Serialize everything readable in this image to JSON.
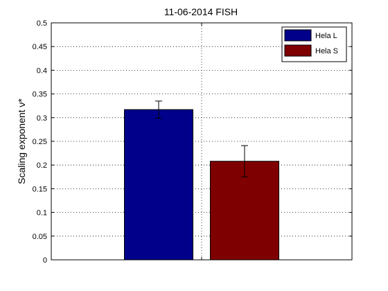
{
  "chart_data": {
    "type": "bar",
    "title": "11-06-2014 FISH",
    "xlabel": "",
    "ylabel": "Scaling exponent ν*",
    "ylim": [
      0,
      0.5
    ],
    "yticks": [
      0,
      0.05,
      0.1,
      0.15,
      0.2,
      0.25,
      0.3,
      0.35,
      0.4,
      0.45,
      0.5
    ],
    "ytick_labels": [
      "0",
      "0.05",
      "0.1",
      "0.15",
      "0.2",
      "0.25",
      "0.3",
      "0.35",
      "0.4",
      "0.45",
      "0.5"
    ],
    "grid": true,
    "legend_position": "top-right",
    "series": [
      {
        "name": "Hela L",
        "value": 0.317,
        "error": 0.018,
        "color": "#00008B"
      },
      {
        "name": "Hela S",
        "value": 0.208,
        "error": 0.033,
        "color": "#7F0000"
      }
    ]
  }
}
